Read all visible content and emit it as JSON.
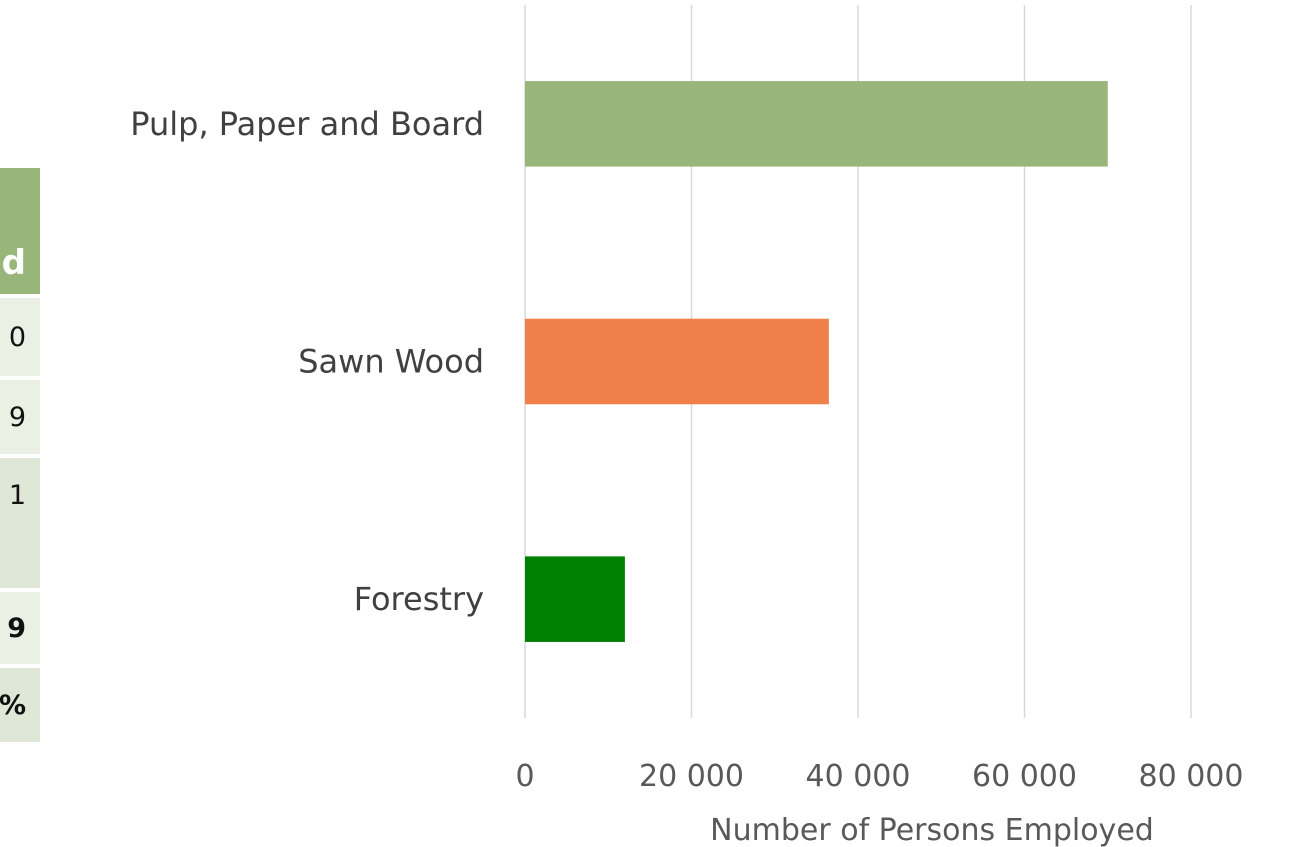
{
  "table_fragment": {
    "header": "d",
    "rows": [
      "0",
      "9",
      "1",
      "9",
      "%"
    ]
  },
  "chart_data": {
    "type": "bar",
    "orientation": "horizontal",
    "categories": [
      "Pulp, Paper and Board",
      "Sawn Wood",
      "Forestry"
    ],
    "values": [
      70000,
      36500,
      12000
    ],
    "colors": [
      "#98b67a",
      "#ef8049",
      "#008000"
    ],
    "xlabel": "Number of Persons Employed",
    "ylabel": "",
    "xlim": [
      0,
      80000
    ],
    "x_ticks": [
      "0",
      "20 000",
      "40 000",
      "60 000",
      "80 000"
    ],
    "grid": true
  }
}
